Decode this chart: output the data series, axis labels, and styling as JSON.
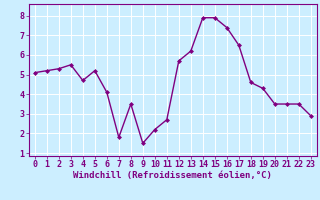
{
  "x": [
    0,
    1,
    2,
    3,
    4,
    5,
    6,
    7,
    8,
    9,
    10,
    11,
    12,
    13,
    14,
    15,
    16,
    17,
    18,
    19,
    20,
    21,
    22,
    23
  ],
  "y": [
    5.1,
    5.2,
    5.3,
    5.5,
    4.7,
    5.2,
    4.1,
    1.8,
    3.5,
    1.5,
    2.2,
    2.7,
    5.7,
    6.2,
    7.9,
    7.9,
    7.4,
    6.5,
    4.6,
    4.3,
    3.5,
    3.5,
    3.5,
    2.9
  ],
  "line_color": "#800080",
  "marker": "D",
  "marker_size": 2.0,
  "linewidth": 1.0,
  "xlabel": "Windchill (Refroidissement éolien,°C)",
  "ylabel": "",
  "title": "",
  "xlim": [
    -0.5,
    23.5
  ],
  "ylim": [
    0.85,
    8.6
  ],
  "yticks": [
    1,
    2,
    3,
    4,
    5,
    6,
    7,
    8
  ],
  "xticks": [
    0,
    1,
    2,
    3,
    4,
    5,
    6,
    7,
    8,
    9,
    10,
    11,
    12,
    13,
    14,
    15,
    16,
    17,
    18,
    19,
    20,
    21,
    22,
    23
  ],
  "bg_color": "#cceeff",
  "grid_color": "#ffffff",
  "label_color": "#800080",
  "tick_color": "#800080",
  "spine_color": "#800080",
  "xlabel_fontsize": 6.5,
  "tick_fontsize": 6.0
}
